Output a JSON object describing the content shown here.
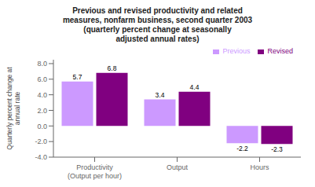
{
  "chart_data": {
    "type": "bar",
    "title": "Previous and revised productivity and related\nmeasures, nonfarm business, second quarter 2003\n(quarterly percent change at seasonally\nadjusted annual rates)",
    "categories": [
      "Productivity\n(Output per hour)",
      "Output",
      "Hours"
    ],
    "series": [
      {
        "name": "Previous",
        "color": "#cc99ff",
        "values": [
          5.7,
          3.4,
          -2.2
        ]
      },
      {
        "name": "Revised",
        "color": "#800080",
        "values": [
          6.8,
          4.4,
          -2.3
        ]
      }
    ],
    "ylabel": "Quarterly percent change at\nannual rate",
    "ylim": [
      -4.0,
      8.5
    ],
    "yticks": [
      {
        "value": -4.0,
        "label": "-4.0"
      },
      {
        "value": -2.0,
        "label": "-2.0"
      },
      {
        "value": 0.0,
        "label": "0.0"
      },
      {
        "value": 2.0,
        "label": "2.0"
      },
      {
        "value": 4.0,
        "label": "4.0"
      },
      {
        "value": 6.0,
        "label": "6.0"
      },
      {
        "value": 8.0,
        "label": "8.0"
      }
    ],
    "grid": false,
    "legend": "upper right",
    "data_labels": true
  }
}
